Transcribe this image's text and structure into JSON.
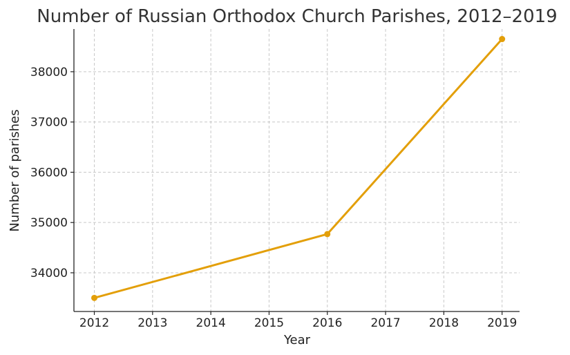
{
  "chart_data": {
    "type": "line",
    "title": "Number of Russian Orthodox Church Parishes, 2012–2019",
    "xlabel": "Year",
    "ylabel": "Number of parishes",
    "x": [
      2012,
      2016,
      2019
    ],
    "series": [
      {
        "values": [
          33500,
          34770,
          38650
        ],
        "color": "#e39f09"
      }
    ],
    "xticks": [
      "2012",
      "2013",
      "2014",
      "2015",
      "2016",
      "2017",
      "2018",
      "2019"
    ],
    "yticks": [
      "34000",
      "35000",
      "36000",
      "37000",
      "38000"
    ],
    "xlim": [
      2011.65,
      2019.3
    ],
    "ylim": [
      33230,
      38850
    ],
    "grid": true
  }
}
